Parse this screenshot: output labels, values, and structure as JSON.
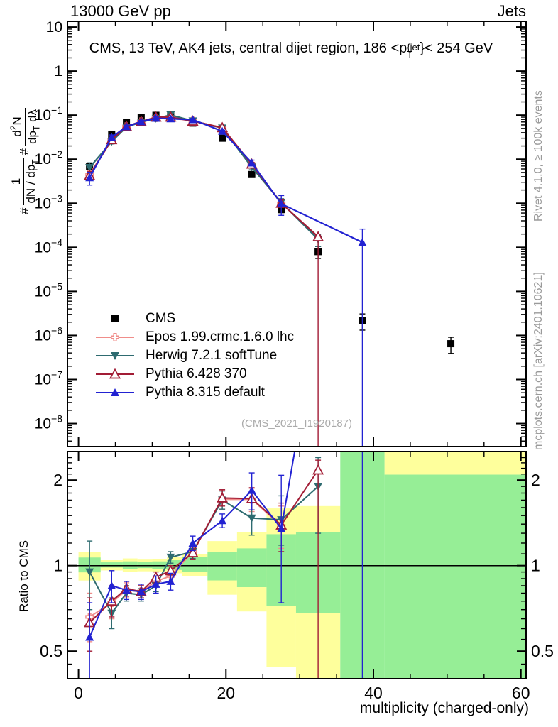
{
  "header": {
    "left": "13000 GeV pp",
    "right": "Jets"
  },
  "title_parts": {
    "pre": "CMS, 13 TeV, AK4 jets, central dijet region, 186 <p",
    "sup": "{jet",
    "sub": "T",
    "post": "}< 254 GeV"
  },
  "watermark": "(CMS_2021_I1920187)",
  "side_notes": {
    "top": "Rivet 4.1.0, ≥ 100k events",
    "bottom": "mcplots.cern.ch [arXiv:2401.10621]"
  },
  "axis_labels": {
    "x": "multiplicity (charged-only)",
    "ratio": "Ratio to CMS"
  },
  "ylabel_parts": {
    "hash1": "#",
    "num1": "1",
    "den1_pre": "dN / dp",
    "den1_sub": "T",
    "hash2": "#",
    "num2_pre": "d",
    "num2_sup": "2",
    "num2_post": "N",
    "den2_pre": "dp",
    "den2_sub": "T",
    "den2_post": " dλ"
  },
  "colors": {
    "band_yellow": "#feff9c",
    "band_green": "#96ee96",
    "frame": "#000000",
    "gray_text": "#9a9a9a"
  },
  "chart_data": {
    "type": "line",
    "title": "CMS, 13 TeV, AK4 jets, central dijet region, 186 < pT^{jet} < 254 GeV",
    "xlabel": "multiplicity (charged-only)",
    "ylabel": "# 1/(dN/dpT) d2N/(dpT dlambda)",
    "ratio_label": "Ratio to CMS",
    "x_range": [
      -1.5,
      60.7
    ],
    "x_ticks": [
      0,
      20,
      40,
      60
    ],
    "x_minor_step": 5,
    "y_scale": "log",
    "y_range": [
      3e-09,
      13.5
    ],
    "y_tick_decades": [
      1,
      0,
      -1,
      -2,
      -3,
      -4,
      -5,
      -6,
      -7,
      -8
    ],
    "ratio_scale": "log",
    "ratio_range": [
      0.4,
      2.52
    ],
    "ratio_ticks": [
      0.5,
      1,
      2
    ],
    "x": [
      1.5,
      4.5,
      6.5,
      8.5,
      10.5,
      12.5,
      15.5,
      19.5,
      23.5,
      27.5,
      32.5,
      38.5,
      50.5
    ],
    "cms": {
      "label": "CMS",
      "color": "#000000",
      "marker": "square",
      "values": [
        0.0068,
        0.037,
        0.067,
        0.088,
        0.099,
        0.094,
        0.066,
        0.03,
        0.0045,
        0.00072,
        8e-05,
        2.2e-06,
        6.5e-07
      ],
      "rel_err": [
        0.1,
        0.04,
        0.03,
        0.03,
        0.03,
        0.03,
        0.04,
        0.05,
        0.08,
        0.15,
        0.3,
        0.4,
        0.4
      ]
    },
    "series": [
      {
        "name": "Epos 1.99.crmc.1.6.0 lhc",
        "color": "#f08d8a",
        "marker": "plus-open",
        "ratios": [
          0.66,
          0.74,
          0.82,
          0.81,
          0.88,
          0.92,
          1.12,
          1.71,
          1.71,
          1.38,
          null,
          null,
          null
        ],
        "ratio_err": [
          [
            0.54,
            0.8
          ],
          [
            0.65,
            0.83
          ],
          [
            0.77,
            0.87
          ],
          [
            0.77,
            0.85
          ],
          [
            0.84,
            0.92
          ],
          [
            0.88,
            0.96
          ],
          [
            1.06,
            1.18
          ],
          [
            1.58,
            1.84
          ],
          [
            1.55,
            1.87
          ],
          [
            1.15,
            1.62
          ],
          null,
          null,
          null
        ]
      },
      {
        "name": "Herwig 7.2.1 softTune",
        "color": "#2e6b70",
        "marker": "triangle-down",
        "ratios": [
          0.95,
          0.68,
          0.8,
          0.79,
          0.85,
          1.07,
          1.12,
          1.7,
          1.47,
          1.45,
          1.9,
          null,
          null
        ],
        "ratio_err": [
          [
            0.7,
            1.22
          ],
          [
            0.6,
            0.77
          ],
          [
            0.75,
            0.85
          ],
          [
            0.75,
            0.83
          ],
          [
            0.81,
            0.89
          ],
          [
            1.02,
            1.12
          ],
          [
            1.06,
            1.18
          ],
          [
            1.58,
            1.83
          ],
          [
            1.28,
            1.67
          ],
          [
            1.18,
            1.76
          ],
          [
            1.3,
            2.4
          ],
          null,
          null
        ]
      },
      {
        "name": "Pythia 6.428 370",
        "color": "#a21c35",
        "marker": "triangle-open",
        "ratios": [
          0.63,
          0.75,
          0.83,
          0.81,
          0.91,
          0.96,
          1.11,
          1.73,
          1.72,
          1.39,
          2.17,
          null,
          null
        ],
        "ratio_err": [
          [
            0.5,
            0.77
          ],
          [
            0.66,
            0.85
          ],
          [
            0.78,
            0.88
          ],
          [
            0.77,
            0.85
          ],
          [
            0.87,
            0.95
          ],
          [
            0.92,
            1.0
          ],
          [
            1.05,
            1.17
          ],
          [
            1.62,
            1.85
          ],
          [
            1.57,
            1.88
          ],
          [
            1.12,
            1.66
          ],
          [
            1e-05,
            2.35
          ],
          null,
          null
        ]
      },
      {
        "name": "Pythia 8.315 default",
        "color": "#2222d2",
        "marker": "triangle-up",
        "ratios": [
          0.56,
          0.85,
          0.82,
          0.81,
          0.86,
          0.88,
          1.2,
          1.44,
          1.84,
          1.35,
          null,
          59,
          null
        ],
        "ratio_err": [
          [
            0.38,
            0.74
          ],
          [
            0.74,
            0.96
          ],
          [
            0.76,
            0.88
          ],
          [
            0.76,
            0.86
          ],
          [
            0.8,
            0.92
          ],
          [
            0.82,
            0.94
          ],
          [
            1.13,
            1.27
          ],
          [
            1.36,
            1.52
          ],
          [
            1.57,
            2.12
          ],
          [
            0.74,
            2.08
          ],
          null,
          [
            1e-05,
            118
          ],
          null
        ]
      }
    ],
    "ratio_bands": [
      {
        "x0": 0,
        "x1": 3,
        "yellow": [
          0.886,
          1.115
        ],
        "green": [
          0.947,
          1.068
        ]
      },
      {
        "x0": 3,
        "x1": 6,
        "yellow": [
          0.962,
          1.045
        ],
        "green": [
          0.985,
          1.027
        ]
      },
      {
        "x0": 6,
        "x1": 8,
        "yellow": [
          0.95,
          1.06
        ],
        "green": [
          0.975,
          1.035
        ]
      },
      {
        "x0": 8,
        "x1": 10,
        "yellow": [
          0.955,
          1.05
        ],
        "green": [
          0.98,
          1.03
        ]
      },
      {
        "x0": 10,
        "x1": 12,
        "yellow": [
          0.95,
          1.055
        ],
        "green": [
          0.975,
          1.035
        ]
      },
      {
        "x0": 12,
        "x1": 14,
        "yellow": [
          0.94,
          1.07
        ],
        "green": [
          0.965,
          1.045
        ]
      },
      {
        "x0": 14,
        "x1": 17.5,
        "yellow": [
          0.92,
          1.1
        ],
        "green": [
          0.95,
          1.07
        ]
      },
      {
        "x0": 17.5,
        "x1": 21.5,
        "yellow": [
          0.79,
          1.22
        ],
        "green": [
          0.887,
          1.115
        ]
      },
      {
        "x0": 21.5,
        "x1": 25.5,
        "yellow": [
          0.69,
          1.31
        ],
        "green": [
          0.84,
          1.15
        ]
      },
      {
        "x0": 25.5,
        "x1": 29.5,
        "yellow": [
          0.44,
          1.59
        ],
        "green": [
          0.72,
          1.29
        ]
      },
      {
        "x0": 29.5,
        "x1": 35.5,
        "yellow": [
          0.395,
          1.62
        ],
        "green": [
          0.68,
          1.31
        ]
      },
      {
        "x0": 35.5,
        "x1": 41.5,
        "yellow": null,
        "green": [
          0.395,
          2.55
        ]
      },
      {
        "x0": 41.5,
        "x1": 60.7,
        "yellow": [
          2.09,
          2.55
        ],
        "green": [
          0.395,
          2.09
        ]
      }
    ]
  }
}
